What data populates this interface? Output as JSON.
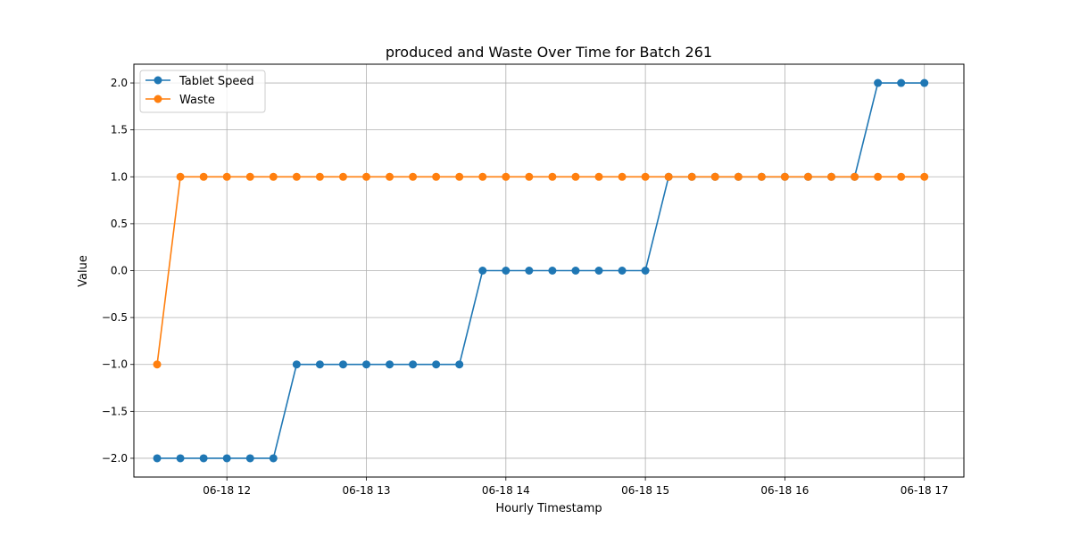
{
  "chart_data": {
    "type": "line",
    "title": "produced and Waste Over Time for Batch 261",
    "xlabel": "Hourly Timestamp",
    "ylabel": "Value",
    "x": [
      "06-18 11:30",
      "06-18 11:40",
      "06-18 11:50",
      "06-18 12:00",
      "06-18 12:10",
      "06-18 12:20",
      "06-18 12:30",
      "06-18 12:40",
      "06-18 12:50",
      "06-18 13:00",
      "06-18 13:10",
      "06-18 13:20",
      "06-18 13:30",
      "06-18 13:40",
      "06-18 13:50",
      "06-18 14:00",
      "06-18 14:10",
      "06-18 14:20",
      "06-18 14:30",
      "06-18 14:40",
      "06-18 14:50",
      "06-18 15:00",
      "06-18 15:10",
      "06-18 15:20",
      "06-18 15:30",
      "06-18 15:40",
      "06-18 15:50",
      "06-18 16:00",
      "06-18 16:10",
      "06-18 16:20",
      "06-18 16:30",
      "06-18 16:40",
      "06-18 16:50",
      "06-18 17:00"
    ],
    "x_ticks": [
      "06-18 12",
      "06-18 13",
      "06-18 14",
      "06-18 15",
      "06-18 16",
      "06-18 17"
    ],
    "xlim": [
      "06-18 11:20",
      "06-18 17:17"
    ],
    "ylim": [
      -2.2,
      2.2
    ],
    "y_ticks": [
      "2.0",
      "1.5",
      "1.0",
      "0.5",
      "0.0",
      "−0.5",
      "−1.0",
      "−1.5",
      "−2.0"
    ],
    "grid": true,
    "legend_position": "top-left",
    "series": [
      {
        "name": "Tablet Speed",
        "color": "#1f77b4",
        "values": [
          -2,
          -2,
          -2,
          -2,
          -2,
          -2,
          -1,
          -1,
          -1,
          -1,
          -1,
          -1,
          -1,
          -1,
          0,
          0,
          0,
          0,
          0,
          0,
          0,
          0,
          1,
          1,
          1,
          1,
          1,
          1,
          1,
          1,
          1,
          2,
          2,
          2
        ]
      },
      {
        "name": "Waste",
        "color": "#ff7f0e",
        "values": [
          -1,
          1,
          1,
          1,
          1,
          1,
          1,
          1,
          1,
          1,
          1,
          1,
          1,
          1,
          1,
          1,
          1,
          1,
          1,
          1,
          1,
          1,
          1,
          1,
          1,
          1,
          1,
          1,
          1,
          1,
          1,
          1,
          1,
          1
        ]
      }
    ]
  }
}
